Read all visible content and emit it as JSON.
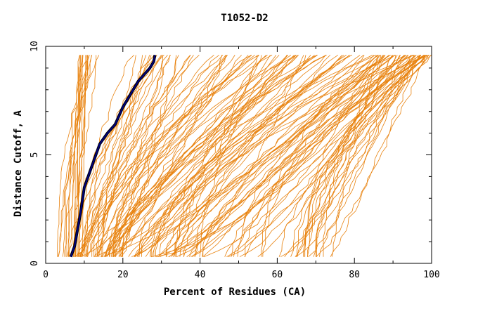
{
  "chart_data": {
    "type": "line",
    "title": "T1052-D2",
    "xlabel": "Percent of Residues (CA)",
    "ylabel": "Distance Cutoff, A",
    "xlim": [
      0,
      100
    ],
    "ylim": [
      0,
      10
    ],
    "xticks": [
      0,
      20,
      40,
      60,
      80,
      100
    ],
    "yticks": [
      0,
      5,
      10
    ],
    "grid": false,
    "legend": "none",
    "colors": {
      "models": "#e8820e",
      "highlight": "#000080",
      "highlight_outline": "#000000",
      "frame": "#000000"
    },
    "highlight_series": {
      "x": [
        6.5,
        7.5,
        8,
        8.5,
        9,
        9.5,
        10,
        11,
        12,
        13,
        14,
        16,
        18,
        19,
        20,
        21,
        22,
        23,
        24,
        25,
        26,
        27,
        28,
        28.3
      ],
      "y": [
        0.3,
        0.8,
        1.3,
        1.8,
        2.3,
        2.9,
        3.5,
        4.0,
        4.5,
        5.0,
        5.5,
        6.0,
        6.4,
        6.8,
        7.2,
        7.5,
        7.8,
        8.1,
        8.4,
        8.6,
        8.8,
        9.0,
        9.3,
        9.6
      ]
    },
    "model_bands": [
      {
        "name": "steep_left",
        "count": 18,
        "x0": [
          3,
          9
        ],
        "x_top": [
          8,
          14
        ]
      },
      {
        "name": "near_highlight",
        "count": 10,
        "x0": [
          7,
          10
        ],
        "x_top": [
          22,
          30
        ]
      },
      {
        "name": "mid_fan",
        "count": 40,
        "x0": [
          8,
          20
        ],
        "x_top": [
          30,
          75
        ]
      },
      {
        "name": "lower_mid",
        "count": 30,
        "x0": [
          10,
          40
        ],
        "x_top": [
          55,
          90
        ]
      },
      {
        "name": "right_dense",
        "count": 55,
        "x0": [
          20,
          75
        ],
        "x_top": [
          85,
          100
        ]
      },
      {
        "name": "bottom_right",
        "count": 4,
        "x0": [
          66,
          72
        ],
        "x_top": [
          96,
          100
        ]
      }
    ]
  }
}
